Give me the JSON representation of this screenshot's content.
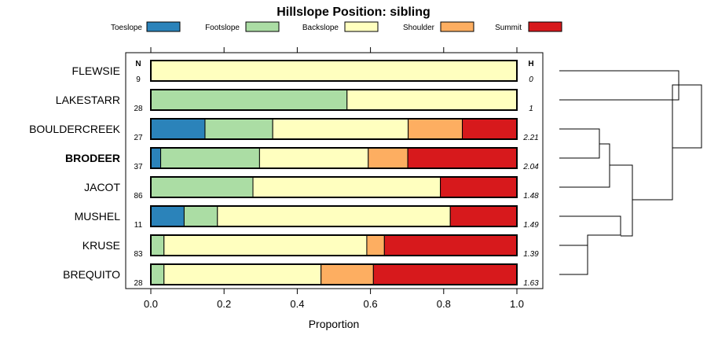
{
  "chart_data": {
    "type": "bar",
    "orientation": "horizontal",
    "stacked": true,
    "title": "Hillslope Position: sibling",
    "xlabel": "Proportion",
    "ylabel": "",
    "xlim": [
      0,
      1
    ],
    "xticks": [
      "0.0",
      "0.2",
      "0.4",
      "0.6",
      "0.8",
      "1.0"
    ],
    "xtick_values": [
      0,
      0.2,
      0.4,
      0.6,
      0.8,
      1.0
    ],
    "n_header": "N",
    "h_header": "H",
    "legend_position": "top",
    "series": [
      {
        "name": "Toeslope",
        "color": "#2b83ba"
      },
      {
        "name": "Footslope",
        "color": "#abdda4"
      },
      {
        "name": "Backslope",
        "color": "#ffffbf"
      },
      {
        "name": "Shoulder",
        "color": "#fdae61"
      },
      {
        "name": "Summit",
        "color": "#d7191c"
      }
    ],
    "categories": [
      {
        "label": "FLEWSIE",
        "n": "9",
        "h": "0",
        "bold": false,
        "values": [
          0,
          0,
          1.0,
          0,
          0
        ]
      },
      {
        "label": "LAKESTARR",
        "n": "28",
        "h": "1",
        "bold": false,
        "values": [
          0,
          0.536,
          0.464,
          0,
          0
        ]
      },
      {
        "label": "BOULDERCREEK",
        "n": "27",
        "h": "2.21",
        "bold": false,
        "values": [
          0.148,
          0.185,
          0.37,
          0.148,
          0.148
        ]
      },
      {
        "label": "BRODEER",
        "n": "37",
        "h": "2.04",
        "bold": true,
        "values": [
          0.027,
          0.27,
          0.297,
          0.108,
          0.297
        ]
      },
      {
        "label": "JACOT",
        "n": "86",
        "h": "1.48",
        "bold": false,
        "values": [
          0,
          0.279,
          0.512,
          0,
          0.209
        ]
      },
      {
        "label": "MUSHEL",
        "n": "11",
        "h": "1.49",
        "bold": false,
        "values": [
          0.091,
          0.091,
          0.636,
          0,
          0.182
        ]
      },
      {
        "label": "KRUSE",
        "n": "83",
        "h": "1.39",
        "bold": false,
        "values": [
          0,
          0.036,
          0.554,
          0.048,
          0.361
        ]
      },
      {
        "label": "BREQUITO",
        "n": "28",
        "h": "1.63",
        "bold": false,
        "values": [
          0,
          0.036,
          0.429,
          0.143,
          0.393
        ]
      }
    ]
  }
}
